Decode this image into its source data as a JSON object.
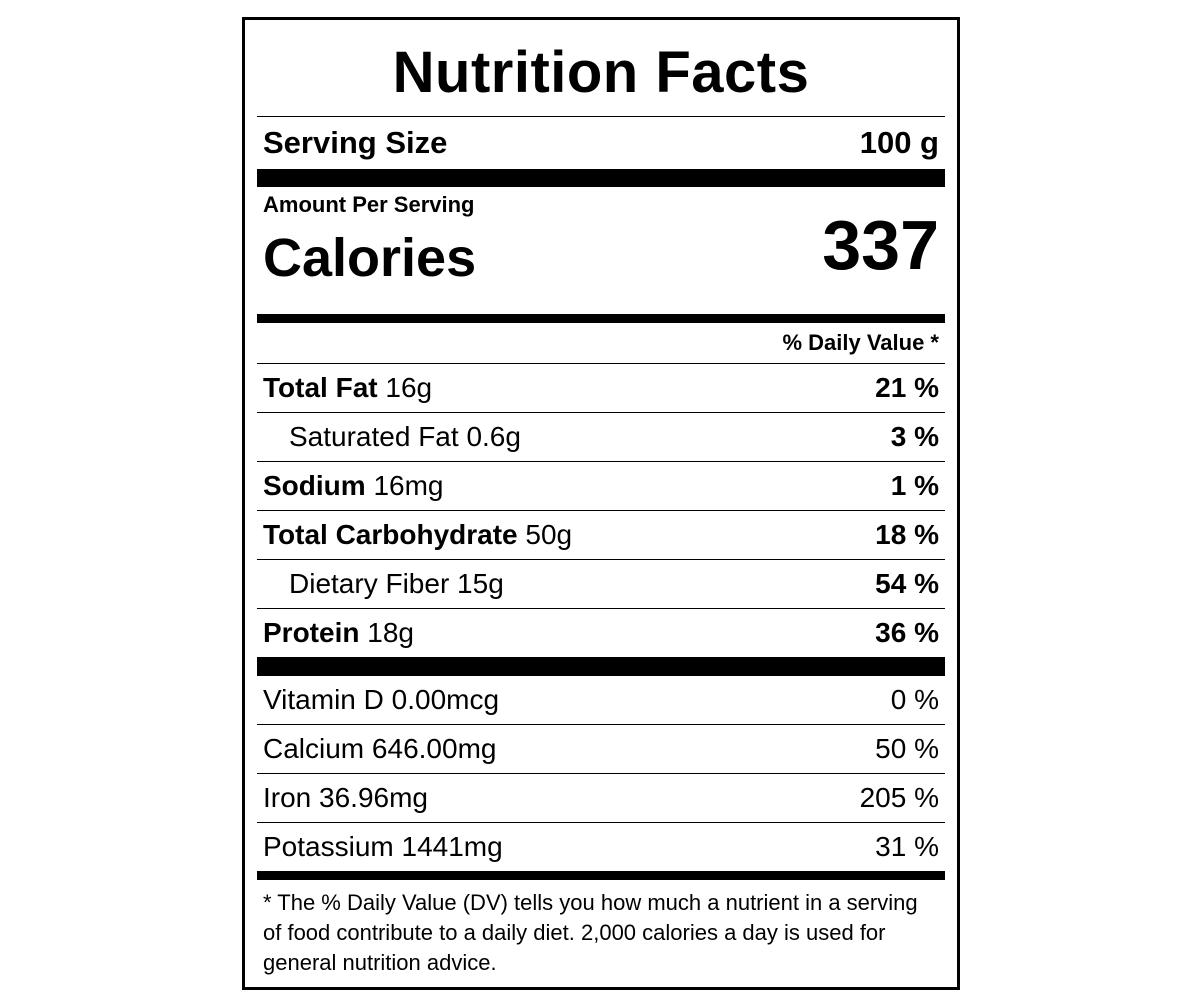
{
  "title": "Nutrition Facts",
  "serving": {
    "label": "Serving Size",
    "value": "100 g"
  },
  "amount_per_serving": "Amount Per Serving",
  "calories": {
    "label": "Calories",
    "value": "337"
  },
  "daily_value_header": "% Daily Value *",
  "nutrients": [
    {
      "name": "Total Fat",
      "amount": "16g",
      "pct": "21 %",
      "bold": true,
      "indent": false
    },
    {
      "name": "Saturated Fat",
      "amount": "0.6g",
      "pct": "3 %",
      "bold": false,
      "indent": true
    },
    {
      "name": "Sodium",
      "amount": "16mg",
      "pct": "1 %",
      "bold": true,
      "indent": false
    },
    {
      "name": "Total Carbohydrate",
      "amount": "50g",
      "pct": "18 %",
      "bold": true,
      "indent": false
    },
    {
      "name": "Dietary Fiber",
      "amount": "15g",
      "pct": "54 %",
      "bold": false,
      "indent": true
    },
    {
      "name": "Protein",
      "amount": "18g",
      "pct": "36 %",
      "bold": true,
      "indent": false
    }
  ],
  "vitamins": [
    {
      "name": "Vitamin D",
      "amount": "0.00mcg",
      "pct": "0 %"
    },
    {
      "name": "Calcium",
      "amount": "646.00mg",
      "pct": "50 %"
    },
    {
      "name": "Iron",
      "amount": "36.96mg",
      "pct": "205 %"
    },
    {
      "name": "Potassium",
      "amount": "1441mg",
      "pct": "31 %"
    }
  ],
  "footnote": "* The % Daily Value (DV) tells you how much a nutrient in a serving of food contribute to a daily diet. 2,000 calories a day is used for general nutrition advice."
}
